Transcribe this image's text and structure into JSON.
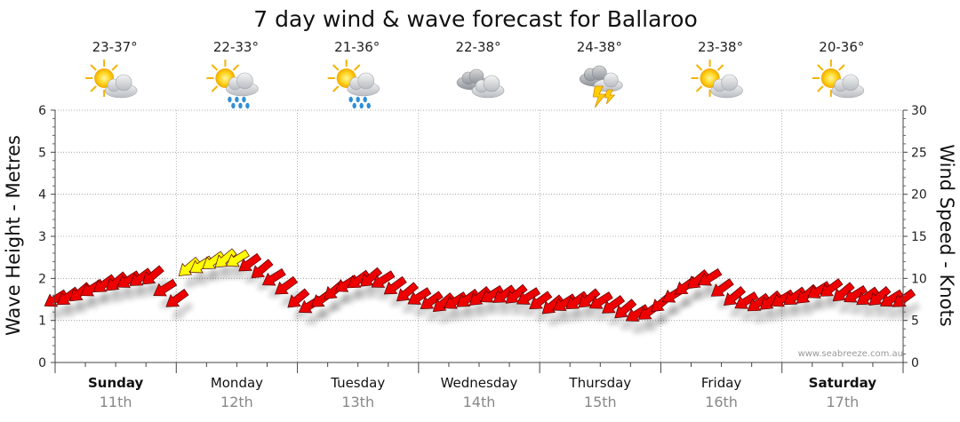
{
  "chart_data": {
    "type": "line",
    "title": "7 day wind & wave forecast for Ballaroo",
    "ylabel_left": "Wave Height - Metres",
    "ylabel_right": "Wind Speed - Knots",
    "ylim_left": [
      0,
      6
    ],
    "ylim_right": [
      0,
      30
    ],
    "yticks_left": [
      "0",
      "1",
      "2",
      "3",
      "4",
      "5",
      "6"
    ],
    "yticks_right": [
      "0",
      "5",
      "10",
      "15",
      "20",
      "25",
      "30"
    ],
    "grid": true,
    "watermark": "www.seabreeze.com.au",
    "days": [
      {
        "name": "Sunday",
        "date": "11th",
        "temp": "23-37°",
        "icon": "sun-cloud-icon",
        "bold": true
      },
      {
        "name": "Monday",
        "date": "12th",
        "temp": "22-33°",
        "icon": "sun-rain-icon",
        "bold": false
      },
      {
        "name": "Tuesday",
        "date": "13th",
        "temp": "21-36°",
        "icon": "sun-rain-icon",
        "bold": false
      },
      {
        "name": "Wednesday",
        "date": "14th",
        "temp": "22-38°",
        "icon": "cloud-icon",
        "bold": false
      },
      {
        "name": "Thursday",
        "date": "15th",
        "temp": "24-38°",
        "icon": "storm-icon",
        "bold": false
      },
      {
        "name": "Friday",
        "date": "16th",
        "temp": "23-38°",
        "icon": "sun-cloud-icon",
        "bold": false
      },
      {
        "name": "Saturday",
        "date": "17th",
        "temp": "20-36°",
        "icon": "sun-cloud-icon",
        "bold": true
      }
    ],
    "colors": {
      "arrow": "#ee0000",
      "arrow_light": "#ffff00",
      "arrow_outline": "#550000",
      "grid": "#9a9a9a"
    },
    "series": [
      {
        "name": "Wave Height - Metres",
        "unit": "m",
        "points": [
          [
            0.0,
            1.5
          ],
          [
            0.1,
            1.55
          ],
          [
            0.2,
            1.65
          ],
          [
            0.3,
            1.75
          ],
          [
            0.4,
            1.85
          ],
          [
            0.5,
            1.9
          ],
          [
            0.6,
            1.95
          ],
          [
            0.7,
            2.0
          ],
          [
            0.8,
            2.05
          ],
          [
            0.9,
            1.75
          ],
          [
            1.0,
            1.5
          ],
          [
            1.1,
            2.25
          ],
          [
            1.2,
            2.3
          ],
          [
            1.3,
            2.4
          ],
          [
            1.4,
            2.45
          ],
          [
            1.5,
            2.45
          ],
          [
            1.6,
            2.35
          ],
          [
            1.7,
            2.2
          ],
          [
            1.8,
            2.0
          ],
          [
            1.9,
            1.8
          ],
          [
            2.0,
            1.5
          ],
          [
            2.1,
            1.35
          ],
          [
            2.2,
            1.5
          ],
          [
            2.3,
            1.7
          ],
          [
            2.4,
            1.85
          ],
          [
            2.5,
            1.95
          ],
          [
            2.6,
            2.0
          ],
          [
            2.7,
            1.95
          ],
          [
            2.8,
            1.8
          ],
          [
            2.9,
            1.65
          ],
          [
            3.0,
            1.55
          ],
          [
            3.1,
            1.45
          ],
          [
            3.2,
            1.4
          ],
          [
            3.3,
            1.45
          ],
          [
            3.4,
            1.5
          ],
          [
            3.5,
            1.55
          ],
          [
            3.6,
            1.6
          ],
          [
            3.7,
            1.6
          ],
          [
            3.8,
            1.6
          ],
          [
            3.9,
            1.55
          ],
          [
            4.0,
            1.45
          ],
          [
            4.1,
            1.35
          ],
          [
            4.2,
            1.4
          ],
          [
            4.3,
            1.45
          ],
          [
            4.4,
            1.5
          ],
          [
            4.5,
            1.45
          ],
          [
            4.6,
            1.35
          ],
          [
            4.7,
            1.25
          ],
          [
            4.8,
            1.15
          ],
          [
            4.9,
            1.2
          ],
          [
            5.0,
            1.4
          ],
          [
            5.1,
            1.6
          ],
          [
            5.2,
            1.8
          ],
          [
            5.3,
            1.95
          ],
          [
            5.4,
            2.0
          ],
          [
            5.5,
            1.75
          ],
          [
            5.6,
            1.55
          ],
          [
            5.7,
            1.45
          ],
          [
            5.8,
            1.4
          ],
          [
            5.9,
            1.45
          ],
          [
            6.0,
            1.5
          ],
          [
            6.1,
            1.55
          ],
          [
            6.2,
            1.6
          ],
          [
            6.3,
            1.7
          ],
          [
            6.4,
            1.75
          ],
          [
            6.5,
            1.65
          ],
          [
            6.6,
            1.6
          ],
          [
            6.7,
            1.55
          ],
          [
            6.8,
            1.55
          ],
          [
            6.9,
            1.5
          ],
          [
            7.0,
            1.5
          ]
        ]
      },
      {
        "name": "Wind Speed - Knots",
        "unit": "kn",
        "points": [
          [
            0.0,
            9
          ],
          [
            0.25,
            9.5
          ],
          [
            0.5,
            10
          ],
          [
            0.75,
            11
          ],
          [
            1.0,
            7
          ],
          [
            1.1,
            12.5
          ],
          [
            1.3,
            13
          ],
          [
            1.5,
            13
          ],
          [
            1.75,
            11
          ],
          [
            2.0,
            8.5
          ],
          [
            2.25,
            7
          ],
          [
            2.5,
            10
          ],
          [
            2.75,
            10.5
          ],
          [
            3.0,
            8.5
          ],
          [
            3.25,
            7.5
          ],
          [
            3.5,
            8
          ],
          [
            3.75,
            8.5
          ],
          [
            4.0,
            7.5
          ],
          [
            4.25,
            7
          ],
          [
            4.5,
            7.5
          ],
          [
            4.75,
            6
          ],
          [
            5.0,
            7.5
          ],
          [
            5.25,
            10
          ],
          [
            5.5,
            8
          ],
          [
            5.75,
            7.5
          ],
          [
            6.0,
            8
          ],
          [
            6.25,
            9
          ],
          [
            6.5,
            8
          ],
          [
            6.75,
            7.5
          ],
          [
            7.0,
            8
          ]
        ]
      }
    ]
  }
}
